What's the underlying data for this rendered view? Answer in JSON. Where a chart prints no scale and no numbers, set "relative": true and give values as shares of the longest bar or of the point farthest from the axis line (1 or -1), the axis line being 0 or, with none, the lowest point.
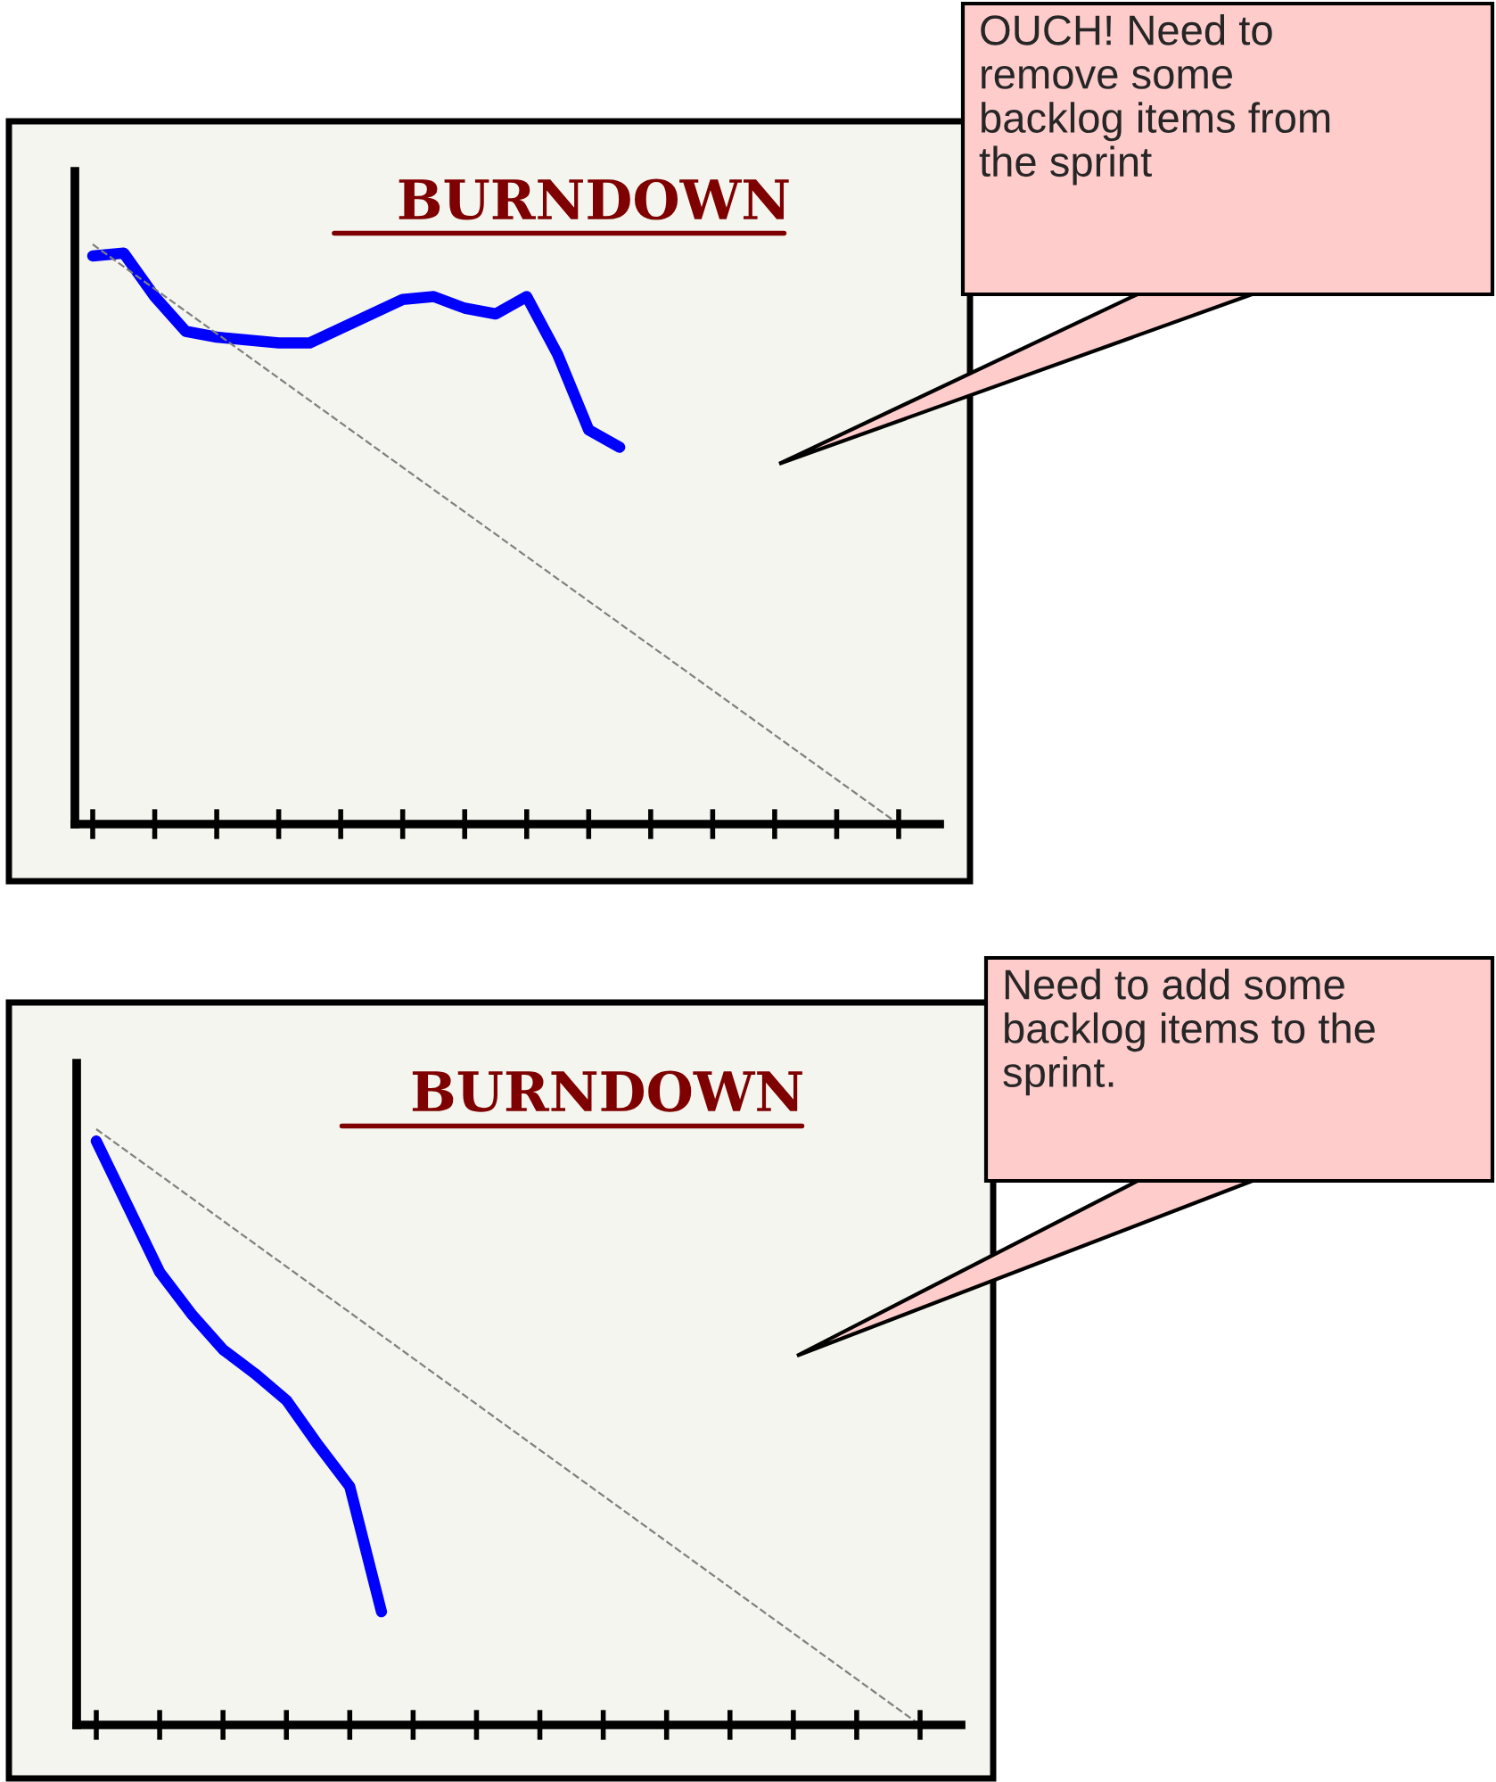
{
  "chart_data": [
    {
      "type": "line",
      "title": "BURNDOWN",
      "relative": true,
      "categories": [
        null,
        null,
        null,
        null,
        null,
        null,
        null,
        null,
        null,
        null,
        null,
        null,
        null,
        null,
        null,
        null,
        null,
        null,
        null,
        null,
        null,
        null,
        null,
        null,
        null,
        null,
        null
      ],
      "series": [
        {
          "color": "#0000ff",
          "line_style": "solid",
          "values": [
            0.98,
            0.985,
            0.91,
            0.85,
            0.84,
            0.835,
            0.83,
            0.83,
            0.855,
            0.88,
            0.905,
            0.91,
            0.89,
            0.88,
            0.91,
            0.81,
            0.68,
            0.65,
            null,
            null,
            null,
            null,
            null,
            null,
            null,
            null,
            null
          ]
        },
        {
          "color": "#808080",
          "line_style": "dashed",
          "values": [
            1,
            null,
            null,
            null,
            null,
            null,
            null,
            null,
            null,
            null,
            null,
            null,
            null,
            null,
            null,
            null,
            null,
            null,
            null,
            null,
            null,
            null,
            null,
            null,
            null,
            null,
            0
          ]
        }
      ],
      "annotations": [
        "OUCH! Need to\nremove some\nbacklog items from\nthe sprint"
      ]
    },
    {
      "type": "line",
      "title": "BURNDOWN",
      "relative": true,
      "categories": [
        null,
        null,
        null,
        null,
        null,
        null,
        null,
        null,
        null,
        null,
        null,
        null,
        null,
        null,
        null,
        null,
        null,
        null,
        null,
        null,
        null,
        null,
        null,
        null,
        null,
        null,
        null
      ],
      "series": [
        {
          "color": "#0000ff",
          "line_style": "solid",
          "values": [
            0.98,
            0.87,
            0.76,
            0.69,
            0.63,
            0.59,
            0.545,
            0.47,
            0.4,
            0.19,
            null,
            null,
            null,
            null,
            null,
            null,
            null,
            null,
            null,
            null,
            null,
            null,
            null,
            null,
            null,
            null,
            null
          ]
        },
        {
          "color": "#808080",
          "line_style": "dashed",
          "values": [
            1,
            null,
            null,
            null,
            null,
            null,
            null,
            null,
            null,
            null,
            null,
            null,
            null,
            null,
            null,
            null,
            null,
            null,
            null,
            null,
            null,
            null,
            null,
            null,
            null,
            null,
            0
          ]
        }
      ],
      "annotations": [
        "Need to add some\nbacklog items to the\nsprint."
      ]
    }
  ]
}
